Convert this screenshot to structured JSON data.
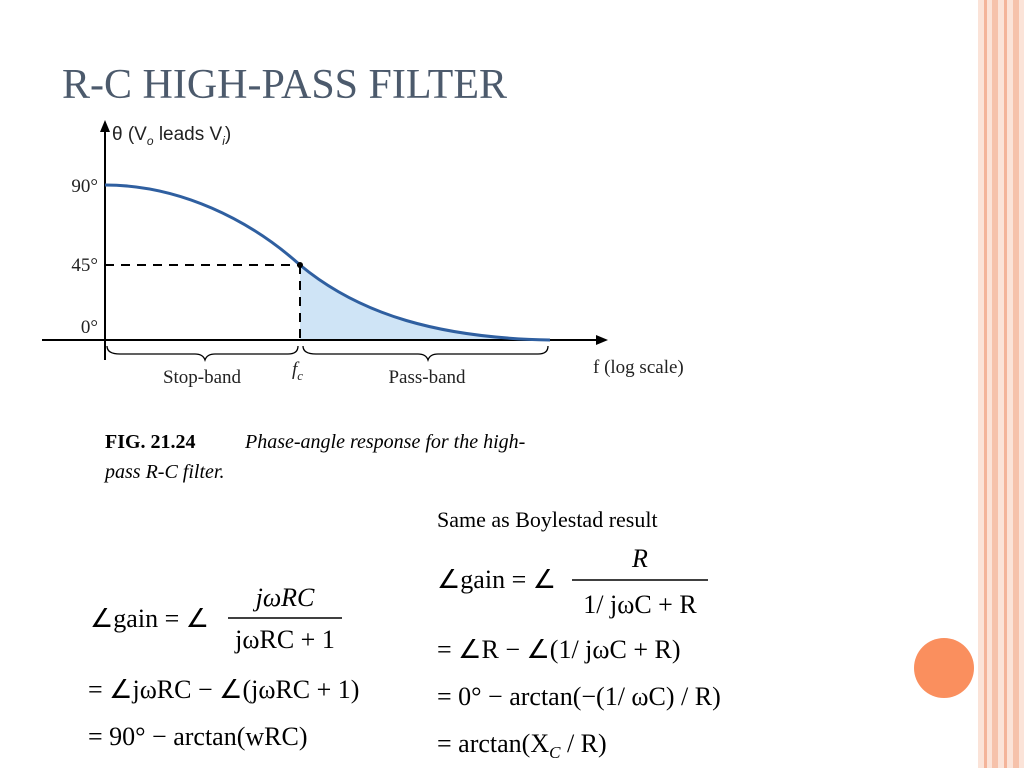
{
  "title": "R-C HIGH-PASS FILTER",
  "figure": {
    "y_axis_label": {
      "start": "θ (V",
      "sub1": "o",
      "middle": " leads V",
      "sub2": "i",
      "end": ")"
    },
    "y_tick_labels": [
      "90°",
      "45°",
      "0°"
    ],
    "x_axis_label": "f (log scale)",
    "cutoff_label": {
      "text": "f",
      "sub": "c"
    },
    "bands": [
      "Stop-band",
      "Pass-band"
    ],
    "caption": {
      "number": "FIG. 21.24",
      "line1": "Phase-angle response for the high-",
      "line2": "pass R-C filter."
    }
  },
  "left_equations": {
    "first": {
      "lhs": "∠gain = ∠",
      "numerator": "jωRC",
      "denominator": "jωRC + 1"
    },
    "lines": [
      "= ∠jωRC − ∠(jωRC + 1)",
      "= 90° − arctan(wRC)"
    ]
  },
  "right_equations": {
    "note": "Same as Boylestad result",
    "first": {
      "lhs": "∠gain = ∠",
      "numerator": "R",
      "denominator": "1/ jωC + R"
    },
    "lines": [
      "= ∠R − ∠(1/ jωC + R)",
      "= 0° − arctan(−(1/ ωC) / R)"
    ],
    "last": {
      "start": "= arctan(X",
      "sub": "C",
      "end": " / R)"
    }
  }
}
